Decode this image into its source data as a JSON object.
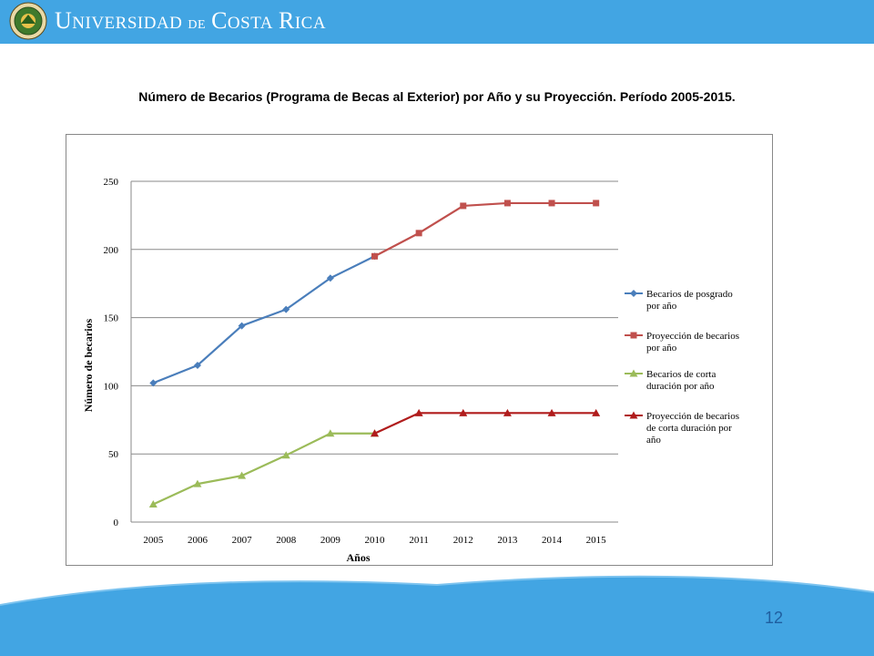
{
  "header": {
    "brand_cap1": "U",
    "brand_rest1": "NIVERSIDAD",
    "brand_de": "DE",
    "brand_cap2": "C",
    "brand_rest2": "OSTA",
    "brand_cap3": "R",
    "brand_rest3": "ICA",
    "colors": {
      "bar": "#42a5e3",
      "text": "#ffffff"
    }
  },
  "slide": {
    "title": "Número de Becarios (Programa de Becas al Exterior) por Año y su Proyección. Período 2005-2015.",
    "page_number": "12"
  },
  "chart_data": {
    "type": "line",
    "xlabel": "Años",
    "ylabel": "Número de becarios",
    "ylim": [
      0,
      250
    ],
    "yticks": [
      0,
      50,
      100,
      150,
      200,
      250
    ],
    "categories": [
      "2005",
      "2006",
      "2007",
      "2008",
      "2009",
      "2010",
      "2011",
      "2012",
      "2013",
      "2014",
      "2015"
    ],
    "grid": "horizontal",
    "legend_position": "right",
    "series": [
      {
        "name": "Becarios de posgrado por año",
        "legend_lines": [
          "Becarios de posgrado",
          "por año"
        ],
        "color": "#4a7ebb",
        "marker": "diamond",
        "points": [
          [
            "2005",
            102
          ],
          [
            "2006",
            115
          ],
          [
            "2007",
            144
          ],
          [
            "2008",
            156
          ],
          [
            "2009",
            179
          ],
          [
            "2010",
            195
          ]
        ]
      },
      {
        "name": "Proyección de becarios por año",
        "legend_lines": [
          "Proyección de becarios",
          "por año"
        ],
        "color": "#c0504d",
        "marker": "square",
        "points": [
          [
            "2010",
            195
          ],
          [
            "2011",
            212
          ],
          [
            "2012",
            232
          ],
          [
            "2013",
            234
          ],
          [
            "2014",
            234
          ],
          [
            "2015",
            234
          ]
        ]
      },
      {
        "name": "Becarios de corta duración por año",
        "legend_lines": [
          "Becarios de corta",
          "duración por año"
        ],
        "color": "#9bbb59",
        "marker": "triangle",
        "points": [
          [
            "2005",
            13
          ],
          [
            "2006",
            28
          ],
          [
            "2007",
            34
          ],
          [
            "2008",
            49
          ],
          [
            "2009",
            65
          ],
          [
            "2010",
            65
          ]
        ]
      },
      {
        "name": "Proyección de becarios de corta duración por año",
        "legend_lines": [
          "Proyección de becarios",
          "de corta duración por",
          "año"
        ],
        "color": "#b01c1c",
        "marker": "triangle",
        "points": [
          [
            "2010",
            65
          ],
          [
            "2011",
            80
          ],
          [
            "2012",
            80
          ],
          [
            "2013",
            80
          ],
          [
            "2014",
            80
          ],
          [
            "2015",
            80
          ]
        ]
      }
    ]
  }
}
